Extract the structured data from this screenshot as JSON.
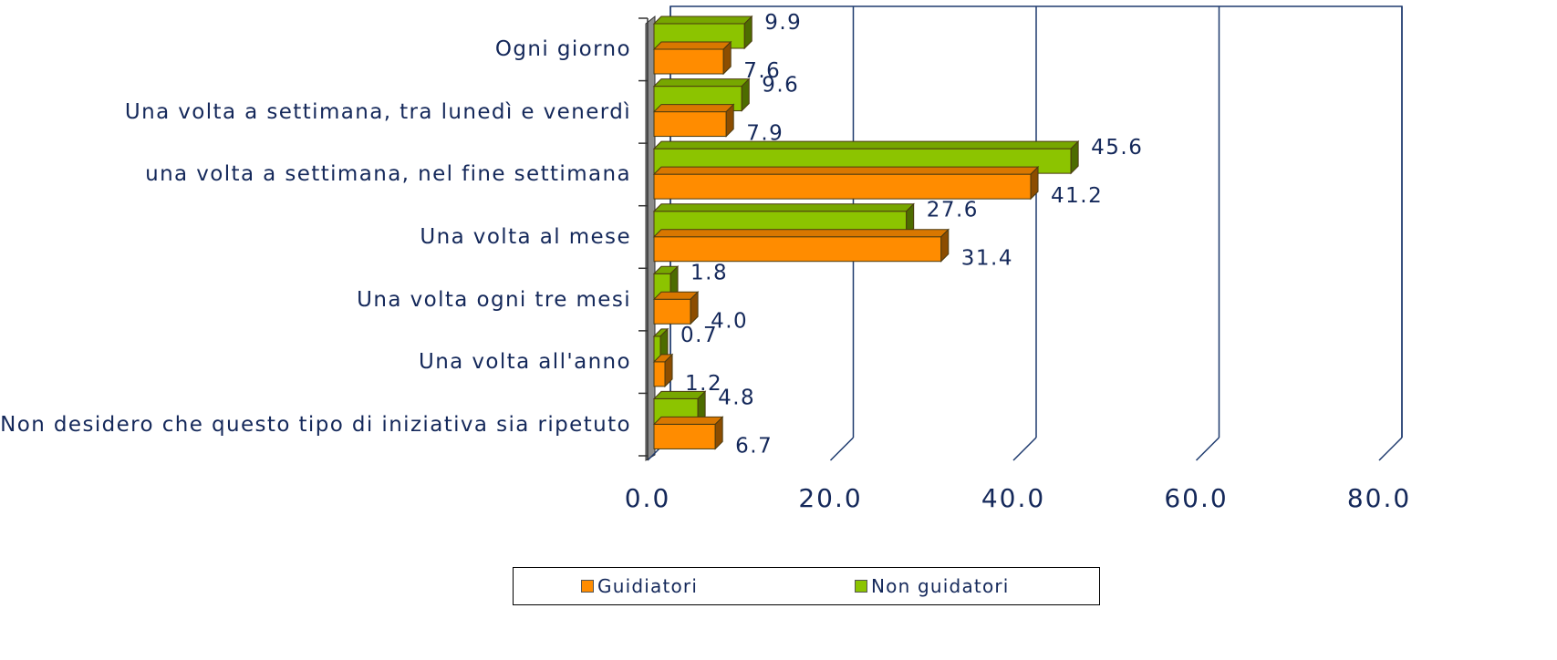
{
  "chart_data": {
    "type": "bar3d-horizontal",
    "categories": [
      "Ogni giorno",
      "Una volta a settimana, tra lunedì e venerdì",
      "una volta a settimana, nel fine settimana",
      "Una volta al mese",
      "Una volta ogni tre mesi",
      "Una volta all'anno",
      "Non desidero che questo tipo di iniziativa sia ripetuto"
    ],
    "series": [
      {
        "name": "Guidiatori",
        "color": "#ff8c00",
        "values": [
          7.6,
          7.9,
          41.2,
          31.4,
          4.0,
          1.2,
          6.7
        ],
        "value_labels": [
          "7.6",
          "7.9",
          "41.2",
          "31.4",
          "4.0",
          "1.2",
          "6.7"
        ]
      },
      {
        "name": "Non guidatori",
        "color": "#8cc400",
        "values": [
          9.9,
          9.6,
          45.6,
          27.6,
          1.8,
          0.7,
          4.8
        ],
        "value_labels": [
          "9.9",
          "9.6",
          "45.6",
          "27.6",
          "1.8",
          "0.7",
          "4.8"
        ]
      }
    ],
    "xlim": [
      0,
      80
    ],
    "xticks": [
      {
        "value": 0,
        "label": "0.0"
      },
      {
        "value": 20,
        "label": "20.0"
      },
      {
        "value": 40,
        "label": "40.0"
      },
      {
        "value": 60,
        "label": "60.0"
      },
      {
        "value": 80,
        "label": "80.0"
      }
    ],
    "grid": true,
    "legend": "bottom"
  }
}
